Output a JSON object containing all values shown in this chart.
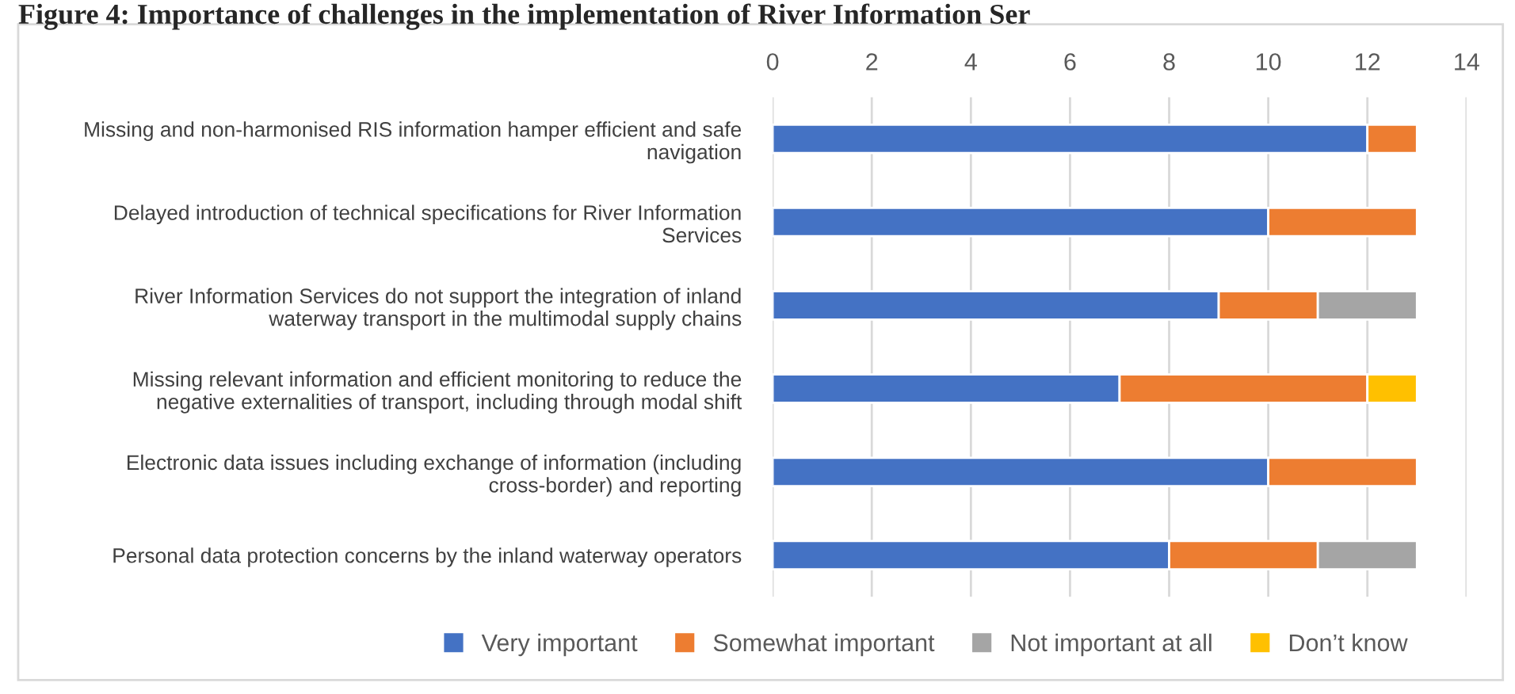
{
  "chart_data": {
    "type": "bar",
    "orientation": "horizontal",
    "stacked": true,
    "title": "Figure 4: Importance of challenges in the implementation of River Information Ser",
    "categories": [
      "Missing and non-harmonised RIS information hamper efficient and safe navigation",
      "Delayed introduction of technical specifications for River Information Services",
      "River Information Services do not support the integration of inland waterway transport in the multimodal supply chains",
      "Missing relevant information and efficient monitoring to reduce the negative externalities of transport, including through modal shift",
      "Electronic data issues including exchange of information (including cross-border) and reporting",
      "Personal data protection concerns by the inland waterway operators"
    ],
    "series": [
      {
        "name": "Very important",
        "color": "#4472c4",
        "values": [
          12,
          10,
          9,
          7,
          10,
          8
        ]
      },
      {
        "name": "Somewhat important",
        "color": "#ed7d31",
        "values": [
          1,
          3,
          2,
          5,
          3,
          3
        ]
      },
      {
        "name": "Not important at all",
        "color": "#a5a5a5",
        "values": [
          null,
          null,
          2,
          null,
          null,
          2
        ]
      },
      {
        "name": "Don’t know",
        "color": "#ffc000",
        "values": [
          null,
          null,
          null,
          1,
          null,
          null
        ]
      }
    ],
    "xlim": [
      0,
      14
    ],
    "xticks": [
      0,
      2,
      4,
      6,
      8,
      10,
      12,
      14
    ],
    "grid": "x",
    "legend": "bottom"
  }
}
